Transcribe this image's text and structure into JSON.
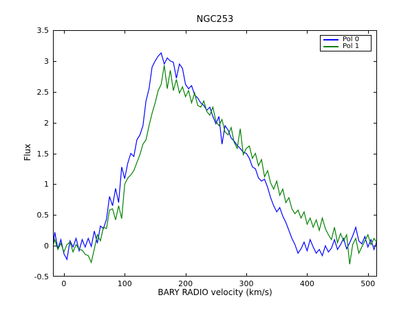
{
  "title": "NGC253",
  "axes": {
    "xlabel": "BARY RADIO velocity (km/s)",
    "ylabel": "Flux"
  },
  "legend": {
    "entries": [
      {
        "label": "Pol 0",
        "color": "#0000ff"
      },
      {
        "label": "Pol 1",
        "color": "#008000"
      }
    ]
  },
  "chart_data": {
    "type": "line",
    "title": "NGC253",
    "xlabel": "BARY RADIO velocity (km/s)",
    "ylabel": "Flux",
    "xlim": [
      -18,
      515
    ],
    "ylim": [
      -0.5,
      3.5
    ],
    "xticks": [
      0,
      100,
      200,
      300,
      400,
      500
    ],
    "xtick_labels": [
      "0",
      "100",
      "200",
      "300",
      "400",
      "500"
    ],
    "yticks": [
      -0.5,
      0,
      0.5,
      1,
      1.5,
      2,
      2.5,
      3,
      3.5
    ],
    "ytick_labels": [
      "-0.5",
      "0",
      "0.5",
      "1",
      "1.5",
      "2",
      "2.5",
      "3",
      "3.5"
    ],
    "grid": false,
    "legend_position": "upper right",
    "x": [
      -18,
      -15,
      -10,
      -5,
      0,
      5,
      10,
      15,
      20,
      25,
      30,
      35,
      40,
      45,
      50,
      55,
      60,
      65,
      70,
      75,
      80,
      85,
      90,
      95,
      100,
      105,
      110,
      115,
      120,
      125,
      130,
      135,
      140,
      145,
      150,
      155,
      160,
      165,
      170,
      175,
      180,
      185,
      190,
      195,
      200,
      205,
      210,
      215,
      220,
      225,
      230,
      235,
      240,
      245,
      250,
      255,
      260,
      265,
      270,
      275,
      280,
      285,
      290,
      295,
      300,
      305,
      310,
      315,
      320,
      325,
      330,
      335,
      340,
      345,
      350,
      355,
      360,
      365,
      370,
      375,
      380,
      385,
      390,
      395,
      400,
      405,
      410,
      415,
      420,
      425,
      430,
      435,
      440,
      445,
      450,
      455,
      460,
      465,
      470,
      475,
      480,
      485,
      490,
      495,
      500,
      505,
      510,
      515
    ],
    "series": [
      {
        "name": "Pol 0",
        "color": "#0000ff",
        "values": [
          0.0,
          0.22,
          -0.05,
          0.1,
          -0.13,
          -0.22,
          0.08,
          -0.02,
          0.12,
          -0.08,
          0.1,
          -0.02,
          0.12,
          -0.01,
          0.24,
          0.04,
          0.32,
          0.28,
          0.43,
          0.8,
          0.65,
          0.93,
          0.7,
          1.28,
          1.09,
          1.34,
          1.5,
          1.45,
          1.72,
          1.8,
          1.95,
          2.35,
          2.55,
          2.9,
          3.0,
          3.08,
          3.13,
          2.95,
          3.05,
          3.0,
          2.98,
          2.72,
          2.95,
          2.88,
          2.62,
          2.55,
          2.6,
          2.45,
          2.4,
          2.32,
          2.28,
          2.2,
          2.25,
          2.1,
          1.98,
          2.1,
          1.65,
          1.95,
          1.88,
          1.75,
          1.7,
          1.63,
          1.58,
          1.52,
          1.5,
          1.42,
          1.28,
          1.25,
          1.1,
          1.05,
          1.08,
          0.95,
          0.78,
          0.65,
          0.55,
          0.62,
          0.48,
          0.38,
          0.25,
          0.12,
          0.02,
          -0.12,
          -0.05,
          0.06,
          -0.08,
          0.1,
          -0.02,
          -0.12,
          -0.06,
          -0.16,
          0.0,
          -0.1,
          -0.04,
          0.1,
          -0.06,
          0.02,
          0.12,
          -0.05,
          0.05,
          0.16,
          0.3,
          0.08,
          0.03,
          0.15,
          -0.02,
          0.1,
          -0.06,
          0.08
        ]
      },
      {
        "name": "Pol 1",
        "color": "#008000",
        "values": [
          0.0,
          0.1,
          -0.06,
          0.04,
          -0.1,
          0.02,
          0.06,
          -0.1,
          0.02,
          -0.06,
          -0.07,
          -0.14,
          -0.16,
          -0.27,
          -0.05,
          0.18,
          0.08,
          0.3,
          0.28,
          0.58,
          0.6,
          0.42,
          0.65,
          0.44,
          1.0,
          1.1,
          1.15,
          1.22,
          1.35,
          1.48,
          1.65,
          1.72,
          1.95,
          2.15,
          2.32,
          2.52,
          2.62,
          2.93,
          2.55,
          2.85,
          2.52,
          2.7,
          2.48,
          2.58,
          2.42,
          2.52,
          2.32,
          2.48,
          2.28,
          2.25,
          2.35,
          2.18,
          2.12,
          2.25,
          2.02,
          1.95,
          2.05,
          1.85,
          1.8,
          1.92,
          1.68,
          1.58,
          1.9,
          1.48,
          1.58,
          1.62,
          1.42,
          1.5,
          1.3,
          1.4,
          1.12,
          1.22,
          1.02,
          0.92,
          1.05,
          0.82,
          0.92,
          0.7,
          0.78,
          0.6,
          0.52,
          0.58,
          0.45,
          0.55,
          0.35,
          0.45,
          0.3,
          0.42,
          0.25,
          0.45,
          0.28,
          0.18,
          0.1,
          0.3,
          0.05,
          0.2,
          0.08,
          0.18,
          -0.3,
          0.02,
          0.12,
          -0.12,
          -0.02,
          0.08,
          0.18,
          0.02,
          0.12,
          0.05
        ]
      }
    ]
  }
}
